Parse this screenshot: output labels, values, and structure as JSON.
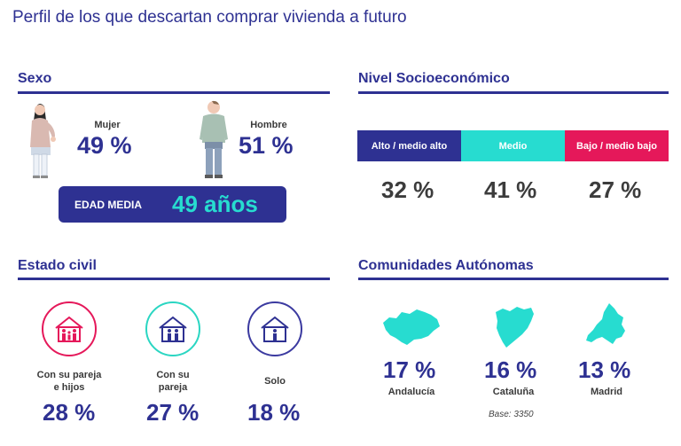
{
  "page_title": "Perfil de los que descartan comprar vivienda a futuro",
  "colors": {
    "navy": "#2e3192",
    "teal": "#27dcd0",
    "crimson": "#e5185a",
    "mint": "#2ad6c2",
    "purple": "#3b3aa0"
  },
  "sexo": {
    "title": "Sexo",
    "mujer": {
      "label": "Mujer",
      "value": "49 %"
    },
    "hombre": {
      "label": "Hombre",
      "value": "51 %"
    },
    "edad_label": "EDAD MEDIA",
    "edad_value": "49 años"
  },
  "nse": {
    "title": "Nivel Socioeconómico",
    "items": [
      {
        "label": "Alto / medio alto",
        "value": "32 %",
        "color": "#2e3192"
      },
      {
        "label": "Medio",
        "value": "41 %",
        "color": "#27dcd0"
      },
      {
        "label": "Bajo / medio bajo",
        "value": "27 %",
        "color": "#e5185a"
      }
    ]
  },
  "civil": {
    "title": "Estado civil",
    "items": [
      {
        "label_lines": [
          "Con su pareja",
          "e hijos"
        ],
        "value": "28 %",
        "icon": "family-house-icon",
        "color": "#e5185a"
      },
      {
        "label_lines": [
          "Con su",
          "pareja"
        ],
        "value": "27 %",
        "icon": "couple-house-icon",
        "color": "#2ad6c2"
      },
      {
        "label_lines": [
          "Solo"
        ],
        "value": "18 %",
        "icon": "single-house-icon",
        "color": "#3b3aa0"
      }
    ]
  },
  "ccaa": {
    "title": "Comunidades Autónomas",
    "items": [
      {
        "name": "Andalucía",
        "value": "17 %",
        "icon": "andalucia-map-icon"
      },
      {
        "name": "Cataluña",
        "value": "16 %",
        "icon": "cataluna-map-icon"
      },
      {
        "name": "Madrid",
        "value": "13 %",
        "icon": "madrid-map-icon"
      }
    ],
    "base": "Base: 3350"
  },
  "chart_data": [
    {
      "type": "table",
      "title": "Sexo",
      "categories": [
        "Mujer",
        "Hombre"
      ],
      "values": [
        49,
        51
      ],
      "unit": "%"
    },
    {
      "type": "bar",
      "title": "Nivel Socioeconómico",
      "categories": [
        "Alto / medio alto",
        "Medio",
        "Bajo / medio bajo"
      ],
      "values": [
        32,
        41,
        27
      ],
      "unit": "%"
    },
    {
      "type": "table",
      "title": "Estado civil",
      "categories": [
        "Con su pareja e hijos",
        "Con su pareja",
        "Solo"
      ],
      "values": [
        28,
        27,
        18
      ],
      "unit": "%"
    },
    {
      "type": "table",
      "title": "Comunidades Autónomas",
      "categories": [
        "Andalucía",
        "Cataluña",
        "Madrid"
      ],
      "values": [
        17,
        16,
        13
      ],
      "unit": "%"
    }
  ]
}
